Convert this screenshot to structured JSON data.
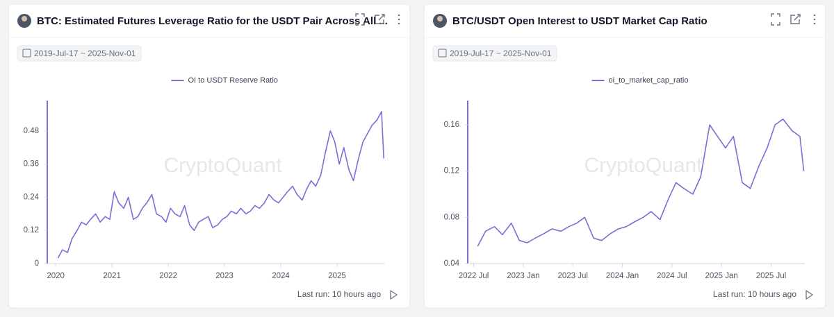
{
  "chart_data": [
    {
      "type": "line",
      "title": "BTC: Estimated Futures Leverage Ratio for the USDT Pair Across All ...",
      "date_range": "2019-Jul-17 ~ 2025-Nov-01",
      "watermark": "CryptoQuant",
      "last_run": "Last run: 10 hours ago",
      "x": [
        2020.04,
        2020.12,
        2020.21,
        2020.29,
        2020.38,
        2020.46,
        2020.54,
        2020.62,
        2020.71,
        2020.79,
        2020.88,
        2020.96,
        2021.04,
        2021.12,
        2021.21,
        2021.29,
        2021.38,
        2021.46,
        2021.54,
        2021.62,
        2021.71,
        2021.79,
        2021.88,
        2021.96,
        2022.04,
        2022.12,
        2022.21,
        2022.29,
        2022.38,
        2022.46,
        2022.54,
        2022.62,
        2022.71,
        2022.79,
        2022.88,
        2022.96,
        2023.04,
        2023.12,
        2023.21,
        2023.29,
        2023.38,
        2023.46,
        2023.54,
        2023.62,
        2023.71,
        2023.79,
        2023.88,
        2023.96,
        2024.04,
        2024.12,
        2024.21,
        2024.29,
        2024.38,
        2024.46,
        2024.54,
        2024.62,
        2024.71,
        2024.79,
        2024.88,
        2024.96,
        2025.04,
        2025.12,
        2025.21,
        2025.29,
        2025.38,
        2025.46,
        2025.54,
        2025.62,
        2025.71,
        2025.79,
        2025.83
      ],
      "series": [
        {
          "name": "OI to USDT Reserve Ratio",
          "color": "#7b6cd9",
          "values": [
            0.02,
            0.05,
            0.04,
            0.09,
            0.12,
            0.15,
            0.14,
            0.16,
            0.18,
            0.15,
            0.17,
            0.16,
            0.26,
            0.22,
            0.2,
            0.24,
            0.16,
            0.17,
            0.2,
            0.22,
            0.25,
            0.18,
            0.17,
            0.15,
            0.2,
            0.18,
            0.17,
            0.21,
            0.14,
            0.12,
            0.15,
            0.16,
            0.17,
            0.13,
            0.14,
            0.16,
            0.17,
            0.19,
            0.18,
            0.2,
            0.18,
            0.19,
            0.21,
            0.2,
            0.22,
            0.25,
            0.23,
            0.22,
            0.24,
            0.26,
            0.28,
            0.25,
            0.23,
            0.27,
            0.3,
            0.28,
            0.32,
            0.4,
            0.48,
            0.44,
            0.36,
            0.42,
            0.34,
            0.3,
            0.38,
            0.44,
            0.47,
            0.5,
            0.52,
            0.55,
            0.38
          ]
        }
      ],
      "xlim": [
        2019.85,
        2025.84
      ],
      "xticks": [
        2020,
        2021,
        2022,
        2023,
        2024,
        2025
      ],
      "ylim": [
        0,
        0.59
      ],
      "yticks": [
        0,
        0.12,
        0.24,
        0.36,
        0.48
      ]
    },
    {
      "type": "line",
      "title": "BTC/USDT Open Interest to USDT Market Cap Ratio",
      "date_range": "2019-Jul-17 ~ 2025-Nov-01",
      "watermark": "CryptoQuant",
      "last_run": "Last run: 10 hours ago",
      "x": [
        2022.54,
        2022.62,
        2022.71,
        2022.79,
        2022.88,
        2022.96,
        2023.04,
        2023.12,
        2023.21,
        2023.29,
        2023.38,
        2023.46,
        2023.54,
        2023.62,
        2023.71,
        2023.79,
        2023.88,
        2023.96,
        2024.04,
        2024.12,
        2024.21,
        2024.29,
        2024.38,
        2024.46,
        2024.54,
        2024.62,
        2024.71,
        2024.79,
        2024.88,
        2024.96,
        2025.04,
        2025.12,
        2025.21,
        2025.29,
        2025.38,
        2025.46,
        2025.54,
        2025.62,
        2025.71,
        2025.79,
        2025.83
      ],
      "series": [
        {
          "name": "oi_to_market_cap_ratio",
          "color": "#7b6cd9",
          "values": [
            0.055,
            0.068,
            0.072,
            0.065,
            0.075,
            0.06,
            0.058,
            0.062,
            0.066,
            0.07,
            0.068,
            0.072,
            0.075,
            0.08,
            0.062,
            0.06,
            0.066,
            0.07,
            0.072,
            0.076,
            0.08,
            0.085,
            0.078,
            0.095,
            0.11,
            0.105,
            0.1,
            0.115,
            0.16,
            0.15,
            0.14,
            0.15,
            0.11,
            0.105,
            0.125,
            0.14,
            0.16,
            0.165,
            0.155,
            0.15,
            0.12
          ]
        }
      ],
      "xlim": [
        2022.44,
        2025.84
      ],
      "xticks": [
        {
          "value": 2022.5,
          "label": "2022 Jul"
        },
        {
          "value": 2023.0,
          "label": "2023 Jan"
        },
        {
          "value": 2023.5,
          "label": "2023 Jul"
        },
        {
          "value": 2024.0,
          "label": "2024 Jan"
        },
        {
          "value": 2024.5,
          "label": "2024 Jul"
        },
        {
          "value": 2025.0,
          "label": "2025 Jan"
        },
        {
          "value": 2025.5,
          "label": "2025 Jul"
        }
      ],
      "ylim": [
        0.04,
        0.181
      ],
      "yticks": [
        0.04,
        0.08,
        0.12,
        0.16
      ]
    }
  ]
}
